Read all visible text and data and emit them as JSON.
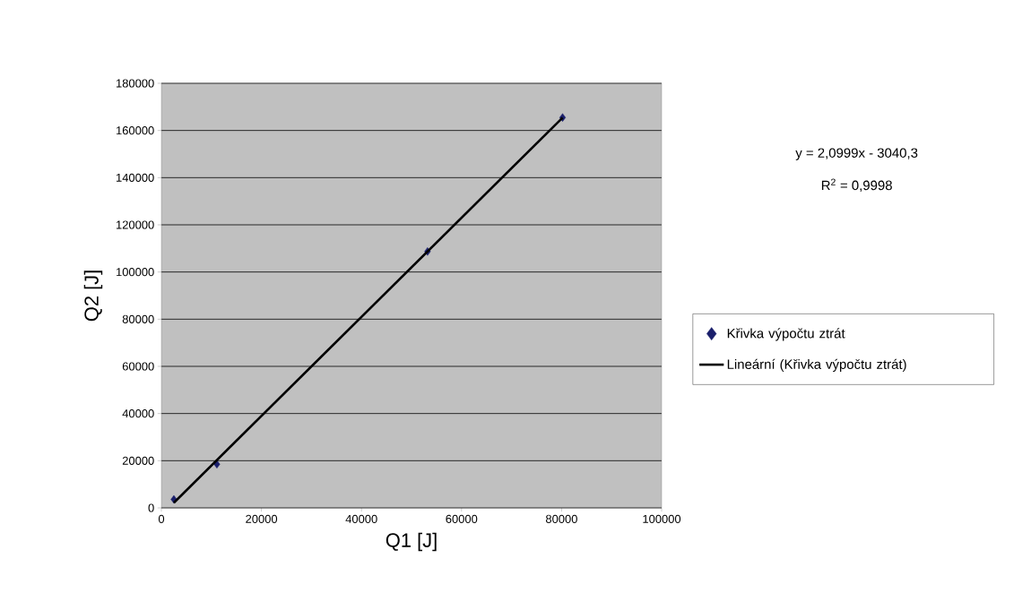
{
  "chart_data": {
    "type": "scatter",
    "xlabel": "Q1 [J]",
    "ylabel": "Q2 [J]",
    "xlim": [
      0,
      100000
    ],
    "xticks": [
      0,
      20000,
      40000,
      60000,
      80000,
      100000
    ],
    "ylim": [
      0,
      180000
    ],
    "yticks": [
      0,
      20000,
      40000,
      60000,
      80000,
      100000,
      120000,
      140000,
      160000,
      180000
    ],
    "grid": "y",
    "legend": "right",
    "marker": "diamond",
    "annotations": [
      "y = 2,0999x - 3040,3",
      "R$^{2}$ = 0,9998"
    ],
    "series": [
      {
        "name": "Křivka výpočtu ztrát",
        "color": "#1a1f6b",
        "x": [
          2500,
          11100,
          53200,
          80200
        ],
        "values": [
          3600,
          18500,
          108700,
          165500
        ]
      },
      {
        "name": "Lineární (Křivka výpočtu ztrát)",
        "type": "line",
        "color": "#000000",
        "marker": "none",
        "line_style": "solid",
        "x": [
          2500,
          80200
        ],
        "values": [
          2200,
          165400
        ]
      }
    ]
  }
}
